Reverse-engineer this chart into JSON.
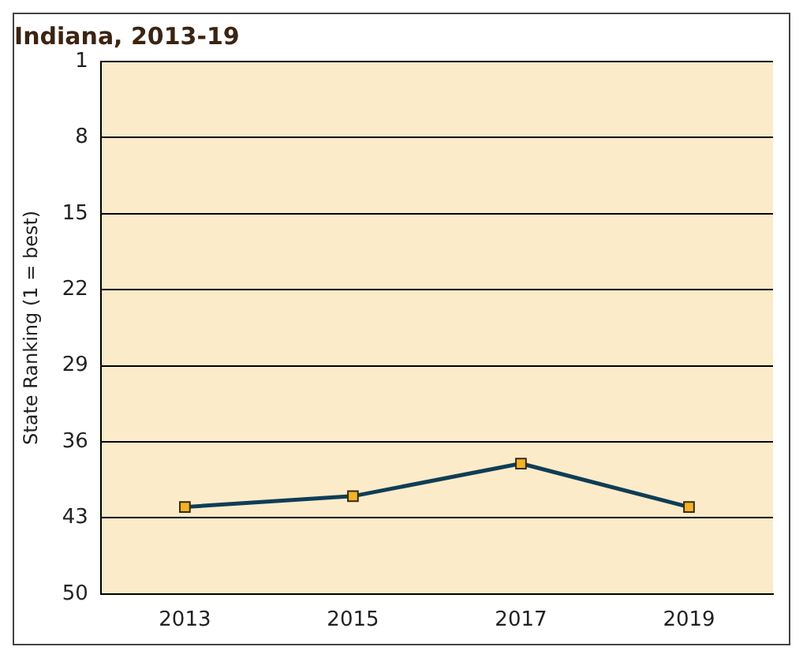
{
  "chart_data": {
    "type": "line",
    "title": "Indiana, 2013-19",
    "ylabel": "State Ranking (1 = best)",
    "categories": [
      "2013",
      "2015",
      "2017",
      "2019"
    ],
    "series": [
      {
        "color": "#0e3d57",
        "values": [
          42,
          41,
          38,
          42
        ]
      }
    ],
    "ylim": [
      50,
      1
    ],
    "yticks": [
      1,
      8,
      15,
      22,
      29,
      36,
      43,
      50
    ],
    "grid": "y",
    "marker": "square",
    "line_style": "solid",
    "legend": false
  }
}
